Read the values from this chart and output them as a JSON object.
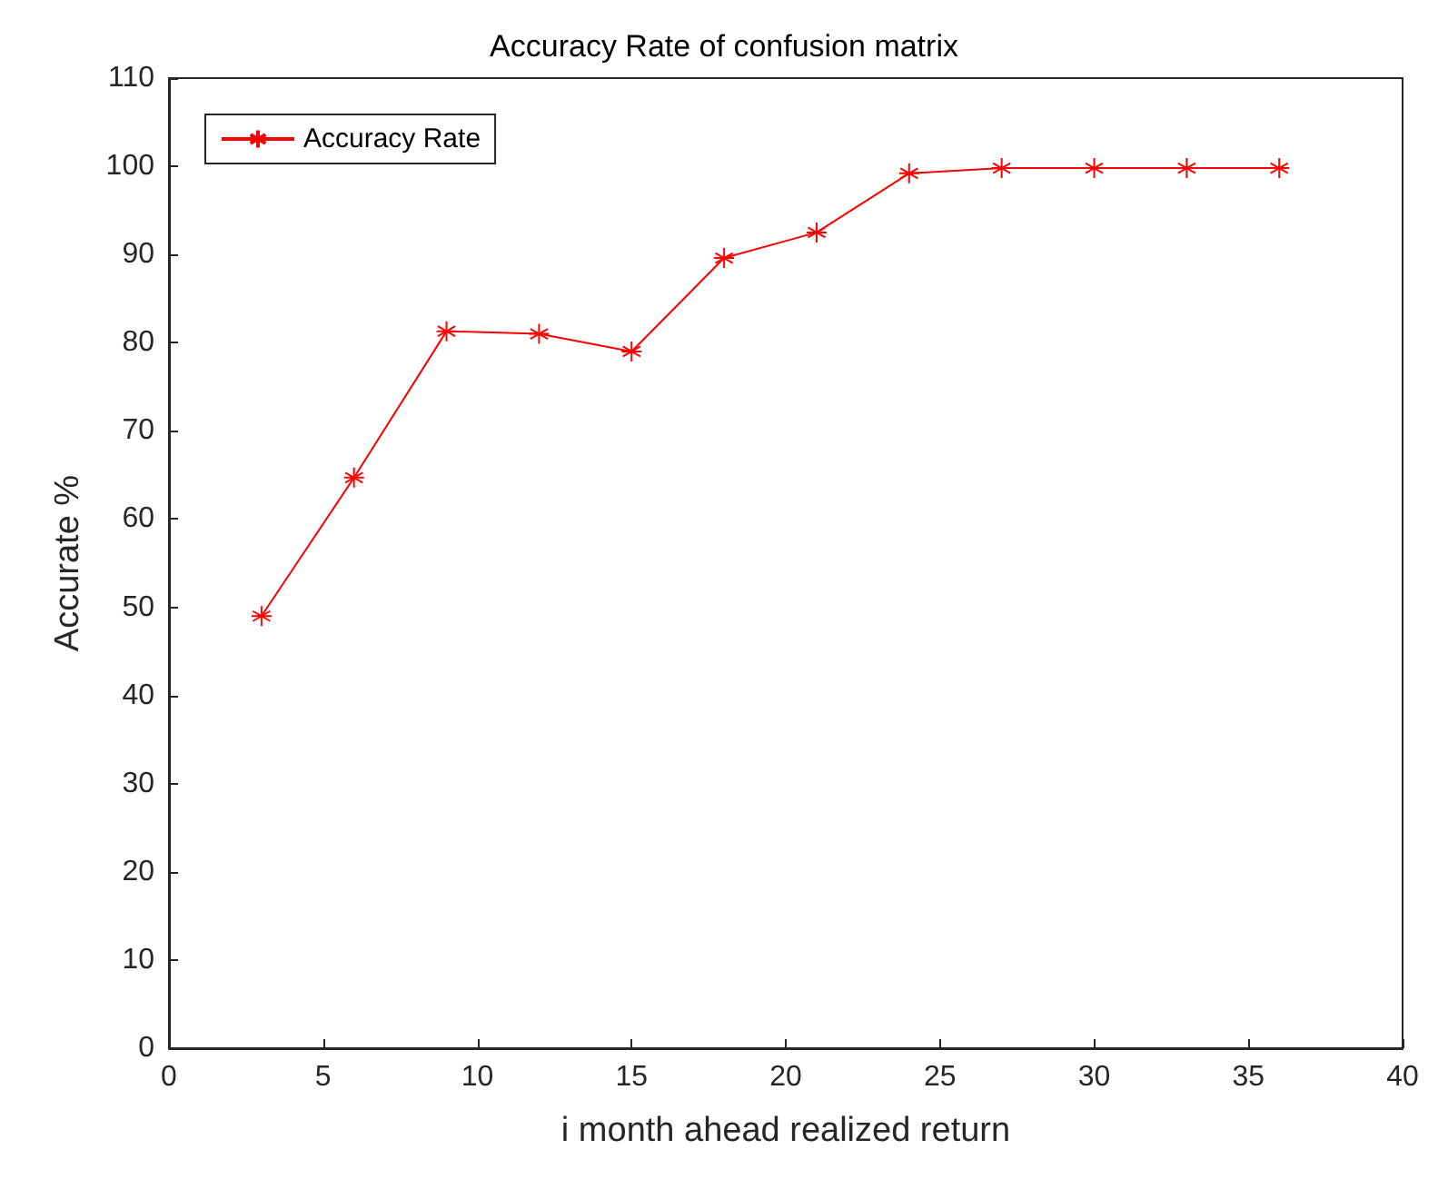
{
  "chart_data": {
    "type": "line",
    "title": "Accuracy Rate of confusion matrix",
    "xlabel": "i month ahead realized return",
    "ylabel": "Accurate %",
    "x": [
      3,
      6,
      9,
      12,
      15,
      18,
      21,
      24,
      27,
      30,
      33,
      36
    ],
    "series": [
      {
        "name": "Accuracy Rate",
        "color": "#ff0000",
        "values": [
          49,
          64.7,
          81.3,
          81,
          79,
          89.6,
          92.5,
          99.2,
          99.8,
          99.8,
          99.8,
          99.8
        ]
      }
    ],
    "xlim": [
      0,
      40
    ],
    "xticks": [
      0,
      5,
      10,
      15,
      20,
      25,
      30,
      35,
      40
    ],
    "ylim": [
      0,
      110
    ],
    "yticks": [
      0,
      10,
      20,
      30,
      40,
      50,
      60,
      70,
      80,
      90,
      100,
      110
    ],
    "grid": false,
    "legend": "top left",
    "marker": "cross",
    "line_style": "solid"
  }
}
